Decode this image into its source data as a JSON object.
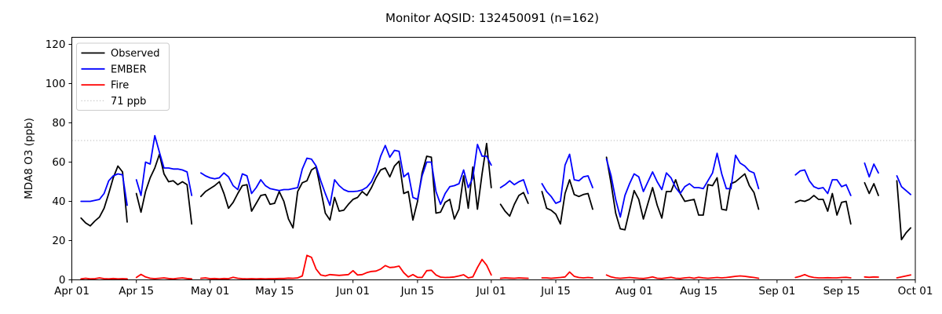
{
  "chart_data": {
    "type": "line",
    "title": "Monitor AQSID: 132450091 (n=162)",
    "xlabel": "",
    "ylabel": "MDA8 O3 (ppb)",
    "ylim": [
      0,
      124
    ],
    "y_ticks": [
      0,
      20,
      40,
      60,
      80,
      100,
      120
    ],
    "x_ticks": [
      "Apr 01",
      "Apr 15",
      "May 01",
      "May 15",
      "Jun 01",
      "Jun 15",
      "Jul 01",
      "Jul 15",
      "Aug 01",
      "Aug 15",
      "Sep 01",
      "Sep 15",
      "Oct 01"
    ],
    "grid": false,
    "legend_position": "upper left",
    "threshold": {
      "value": 71,
      "label": "71 ppb",
      "color": "#c8c8c8",
      "style": "dotted"
    },
    "colors": {
      "observed": "#000000",
      "ember": "#0000ff",
      "fire": "#ff0000",
      "axis": "#000000"
    },
    "dates": [
      "Apr 03",
      "Apr 04",
      "Apr 05",
      "Apr 06",
      "Apr 07",
      "Apr 08",
      "Apr 09",
      "Apr 10",
      "Apr 11",
      "Apr 12",
      "Apr 13",
      "Apr 14",
      "Apr 15",
      "Apr 16",
      "Apr 17",
      "Apr 18",
      "Apr 19",
      "Apr 20",
      "Apr 21",
      "Apr 22",
      "Apr 23",
      "Apr 24",
      "Apr 25",
      "Apr 26",
      "Apr 27",
      "Apr 28",
      "Apr 29",
      "Apr 30",
      "May 01",
      "May 02",
      "May 03",
      "May 04",
      "May 05",
      "May 06",
      "May 07",
      "May 08",
      "May 09",
      "May 10",
      "May 11",
      "May 12",
      "May 13",
      "May 14",
      "May 15",
      "May 16",
      "May 17",
      "May 18",
      "May 19",
      "May 20",
      "May 21",
      "May 22",
      "May 23",
      "May 24",
      "May 25",
      "May 26",
      "May 27",
      "May 28",
      "May 29",
      "May 30",
      "May 31",
      "Jun 01",
      "Jun 02",
      "Jun 03",
      "Jun 04",
      "Jun 05",
      "Jun 06",
      "Jun 07",
      "Jun 08",
      "Jun 09",
      "Jun 10",
      "Jun 11",
      "Jun 12",
      "Jun 13",
      "Jun 14",
      "Jun 15",
      "Jun 16",
      "Jun 17",
      "Jun 18",
      "Jun 19",
      "Jun 20",
      "Jun 21",
      "Jun 22",
      "Jun 23",
      "Jun 24",
      "Jun 25",
      "Jun 26",
      "Jun 27",
      "Jun 28",
      "Jun 29",
      "Jun 30",
      "Jul 01",
      "Jul 02",
      "Jul 03",
      "Jul 04",
      "Jul 05",
      "Jul 06",
      "Jul 07",
      "Jul 08",
      "Jul 09",
      "Jul 10",
      "Jul 11",
      "Jul 12",
      "Jul 13",
      "Jul 14",
      "Jul 15",
      "Jul 16",
      "Jul 17",
      "Jul 18",
      "Jul 19",
      "Jul 20",
      "Jul 21",
      "Jul 22",
      "Jul 23",
      "Jul 24",
      "Jul 25",
      "Jul 26",
      "Jul 27",
      "Jul 28",
      "Jul 29",
      "Jul 30",
      "Jul 31",
      "Aug 01",
      "Aug 02",
      "Aug 03",
      "Aug 04",
      "Aug 05",
      "Aug 06",
      "Aug 07",
      "Aug 08",
      "Aug 09",
      "Aug 10",
      "Aug 11",
      "Aug 12",
      "Aug 13",
      "Aug 14",
      "Aug 15",
      "Aug 16",
      "Aug 17",
      "Aug 18",
      "Aug 19",
      "Aug 20",
      "Aug 21",
      "Aug 22",
      "Aug 23",
      "Aug 24",
      "Aug 25",
      "Aug 26",
      "Aug 27",
      "Aug 28",
      "Aug 29",
      "Aug 30",
      "Aug 31",
      "Sep 01",
      "Sep 02",
      "Sep 03",
      "Sep 04",
      "Sep 05",
      "Sep 06",
      "Sep 07",
      "Sep 08",
      "Sep 09",
      "Sep 10",
      "Sep 11",
      "Sep 12",
      "Sep 13",
      "Sep 14",
      "Sep 15",
      "Sep 16",
      "Sep 17",
      "Sep 18",
      "Sep 19",
      "Sep 20",
      "Sep 21",
      "Sep 22",
      "Sep 23",
      "Sep 24",
      "Sep 25",
      "Sep 26",
      "Sep 27",
      "Sep 28",
      "Sep 29",
      "Sep 30"
    ],
    "series": [
      {
        "name": "Observed",
        "color": "#000000",
        "values": [
          31.5,
          29,
          27.5,
          30,
          32,
          36.5,
          44,
          52,
          58,
          55,
          29.5,
          null,
          44,
          34.5,
          45,
          52,
          57,
          64,
          54,
          50,
          50.5,
          48.5,
          50,
          48.5,
          28.5,
          null,
          42.5,
          45,
          46.5,
          48,
          50,
          44,
          36.5,
          39.5,
          44,
          48,
          48.5,
          35,
          39,
          43,
          43.5,
          38.5,
          39,
          45,
          40,
          31,
          26.5,
          45,
          49.5,
          50.5,
          56,
          57.5,
          46,
          34,
          30.5,
          42,
          35,
          35.5,
          38.5,
          41,
          42,
          45,
          43,
          47,
          52,
          56,
          57,
          52.5,
          58,
          60.5,
          44,
          45,
          30.5,
          40,
          54.5,
          63,
          62.5,
          34,
          34.5,
          39.5,
          41,
          31,
          36,
          53,
          36.5,
          57.5,
          36,
          54,
          69.5,
          47,
          null,
          38.5,
          35,
          32.5,
          38.5,
          43,
          44.5,
          39,
          null,
          null,
          45,
          36.5,
          35.5,
          33.5,
          28.5,
          44,
          51,
          43.5,
          42.5,
          43.5,
          44,
          36,
          null,
          null,
          62.5,
          49,
          34,
          26,
          25.5,
          35.5,
          45.5,
          41,
          31,
          39,
          47,
          38,
          31.5,
          45,
          45,
          51,
          44,
          40,
          40.5,
          41,
          33,
          33,
          48.5,
          48,
          52,
          36,
          35.5,
          49,
          50,
          52,
          54,
          48,
          44.5,
          36,
          null,
          null,
          null,
          null,
          null,
          null,
          null,
          39.5,
          40.5,
          40,
          41,
          43,
          41,
          41,
          35,
          44,
          33,
          39.5,
          40,
          28.5,
          null,
          null,
          49.5,
          44,
          49,
          43,
          null,
          null,
          null,
          50.5,
          20.5,
          24,
          26.5
        ]
      },
      {
        "name": "EMBER",
        "color": "#0000ff",
        "values": [
          40,
          40,
          40,
          40.5,
          41,
          44,
          50.5,
          53,
          54,
          53.5,
          38,
          null,
          51,
          43,
          60,
          59,
          73.5,
          65,
          57,
          57,
          56.5,
          56.5,
          56,
          55,
          43,
          null,
          54.5,
          53,
          52,
          51.5,
          52,
          54.5,
          52.5,
          48,
          46,
          54,
          53,
          44,
          47,
          51,
          48,
          46.5,
          46,
          45.5,
          46,
          46,
          46.5,
          47,
          56.5,
          62,
          61.5,
          58,
          50.5,
          44,
          38,
          51,
          48,
          46,
          45,
          45,
          45.2,
          45.8,
          47.2,
          50,
          55,
          63,
          68.5,
          62.5,
          66,
          65.5,
          52.5,
          54.5,
          42,
          41,
          53,
          60,
          60,
          45,
          38.5,
          44,
          47.5,
          48,
          49,
          56,
          47,
          52,
          69,
          63,
          63,
          58.5,
          null,
          47,
          48.5,
          50.5,
          48.5,
          50,
          51,
          44,
          null,
          null,
          49,
          45,
          42.5,
          39,
          40,
          58.5,
          64,
          51,
          50.5,
          52.5,
          53,
          47,
          null,
          null,
          61.5,
          53,
          41,
          32,
          43,
          49,
          54,
          52.5,
          45,
          50,
          55,
          50,
          46,
          54.5,
          52,
          47,
          44,
          47.5,
          49,
          47,
          47,
          46.5,
          50.5,
          54.5,
          64.5,
          54,
          46.5,
          46.5,
          63.5,
          59.5,
          58,
          55.5,
          54.5,
          46.5,
          null,
          null,
          null,
          null,
          null,
          null,
          null,
          53.5,
          55.5,
          56,
          50.5,
          47.5,
          46.5,
          47,
          44,
          51,
          51,
          47.5,
          48.5,
          43,
          null,
          null,
          59.5,
          52.5,
          59,
          54.5,
          null,
          null,
          null,
          53,
          47.5,
          45.5,
          43.5
        ]
      },
      {
        "name": "Fire",
        "color": "#ff0000",
        "values": [
          0.5,
          0.8,
          0.5,
          0.6,
          1,
          0.6,
          0.5,
          0.7,
          0.5,
          0.6,
          0.5,
          null,
          1.2,
          2.8,
          1.5,
          0.8,
          0.6,
          0.8,
          1,
          0.7,
          0.5,
          0.8,
          1,
          0.7,
          0.5,
          null,
          0.8,
          1,
          0.6,
          0.7,
          0.5,
          0.7,
          0.6,
          1.3,
          0.8,
          0.6,
          0.5,
          0.6,
          0.5,
          0.6,
          0.5,
          0.6,
          0.6,
          0.7,
          0.7,
          0.9,
          0.8,
          1,
          2,
          12.5,
          11.5,
          5.5,
          2.5,
          2,
          2.7,
          2.5,
          2.3,
          2.5,
          2.7,
          4.7,
          2.5,
          2.7,
          3.7,
          4.3,
          4.5,
          5.5,
          7.3,
          6.3,
          6.5,
          7,
          3.7,
          1.5,
          2.7,
          1.3,
          1.2,
          4.7,
          4.9,
          2.5,
          1.4,
          1.2,
          1.3,
          1.5,
          2,
          2.6,
          1,
          1.5,
          6.3,
          10.4,
          7.5,
          2.5,
          null,
          0.8,
          1,
          0.9,
          0.8,
          1,
          0.9,
          0.8,
          null,
          null,
          1,
          1,
          0.8,
          1,
          1.2,
          1.5,
          4,
          1.8,
          1.2,
          1,
          1.2,
          1,
          null,
          null,
          2.5,
          1.5,
          1,
          0.8,
          1,
          1.2,
          1,
          0.8,
          0.7,
          1,
          1.5,
          0.8,
          0.7,
          1,
          1.3,
          0.8,
          0.7,
          1,
          1.2,
          0.8,
          1.3,
          1,
          0.8,
          1,
          1.2,
          1,
          1.2,
          1.5,
          1.8,
          2,
          1.8,
          1.5,
          1.2,
          0.8,
          null,
          null,
          null,
          null,
          null,
          null,
          null,
          1.2,
          1.8,
          2.7,
          1.7,
          1.2,
          1,
          1,
          1.1,
          1,
          1,
          1.2,
          1.3,
          1,
          null,
          null,
          1.5,
          1.3,
          1.5,
          1.4,
          null,
          null,
          null,
          1,
          1.5,
          2,
          2.5
        ]
      }
    ]
  }
}
